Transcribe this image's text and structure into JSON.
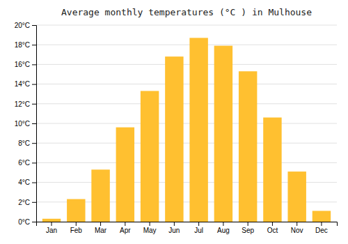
{
  "chart_data": {
    "type": "bar",
    "title": "Average monthly temperatures (°C ) in Mulhouse",
    "categories": [
      "Jan",
      "Feb",
      "Mar",
      "Apr",
      "May",
      "Jun",
      "Jul",
      "Aug",
      "Sep",
      "Oct",
      "Nov",
      "Dec"
    ],
    "values": [
      0.3,
      2.3,
      5.3,
      9.6,
      13.3,
      16.8,
      18.7,
      17.9,
      15.3,
      10.6,
      5.1,
      1.1
    ],
    "color": "#FFC030",
    "ylim": [
      0,
      20
    ],
    "yticks": [
      {
        "value": 0,
        "label": "0°C"
      },
      {
        "value": 2,
        "label": "2°C"
      },
      {
        "value": 4,
        "label": "4°C"
      },
      {
        "value": 6,
        "label": "6°C"
      },
      {
        "value": 8,
        "label": "8°C"
      },
      {
        "value": 10,
        "label": "10°C"
      },
      {
        "value": 12,
        "label": "12°C"
      },
      {
        "value": 14,
        "label": "14°C"
      },
      {
        "value": 16,
        "label": "16°C"
      },
      {
        "value": 18,
        "label": "18°C"
      },
      {
        "value": 20,
        "label": "20°C"
      }
    ],
    "grid": true
  }
}
